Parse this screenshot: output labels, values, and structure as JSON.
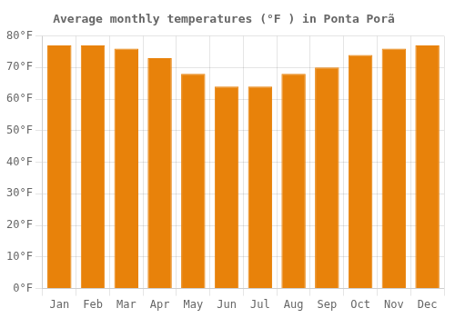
{
  "chart_data": {
    "type": "bar",
    "title": "Average monthly temperatures (°F ) in Ponta Porã",
    "categories": [
      "Jan",
      "Feb",
      "Mar",
      "Apr",
      "May",
      "Jun",
      "Jul",
      "Aug",
      "Sep",
      "Oct",
      "Nov",
      "Dec"
    ],
    "values": [
      77,
      77,
      76,
      73,
      68,
      64,
      64,
      68,
      70,
      74,
      76,
      77
    ],
    "color": "#E8820A",
    "ylim": [
      0,
      80
    ],
    "yticks": [
      {
        "value": 0,
        "label": "0°F"
      },
      {
        "value": 10,
        "label": "10°F"
      },
      {
        "value": 20,
        "label": "20°F"
      },
      {
        "value": 30,
        "label": "30°F"
      },
      {
        "value": 40,
        "label": "40°F"
      },
      {
        "value": 50,
        "label": "50°F"
      },
      {
        "value": 60,
        "label": "60°F"
      },
      {
        "value": 70,
        "label": "70°F"
      },
      {
        "value": 80,
        "label": "80°F"
      }
    ],
    "grid": true
  }
}
